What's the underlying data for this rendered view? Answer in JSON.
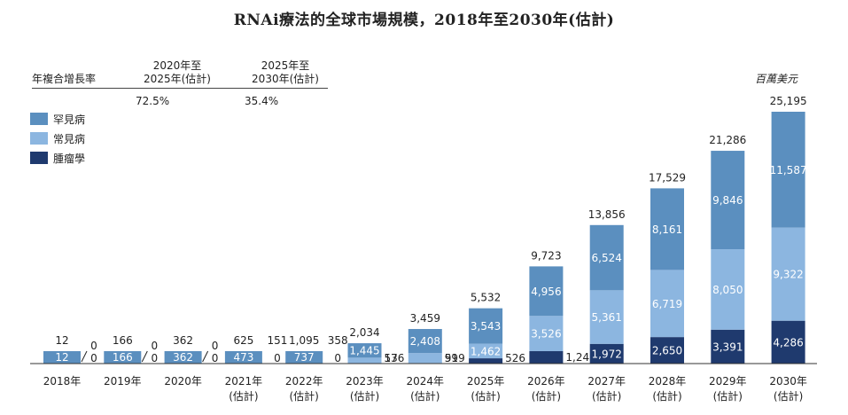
{
  "chart_data": {
    "type": "bar",
    "stacked": true,
    "title": "RNAi療法的全球市場規模，2018年至2030年(估計)",
    "unit": "百萬美元",
    "categories": [
      [
        "2018年"
      ],
      [
        "2019年"
      ],
      [
        "2020年"
      ],
      [
        "2021年",
        "(估計)"
      ],
      [
        "2022年",
        "(估計)"
      ],
      [
        "2023年",
        "(估計)"
      ],
      [
        "2024年",
        "(估計)"
      ],
      [
        "2025年",
        "(估計)"
      ],
      [
        "2026年",
        "(估計)"
      ],
      [
        "2027年",
        "(估計)"
      ],
      [
        "2028年",
        "(估計)"
      ],
      [
        "2029年",
        "(估計)"
      ],
      [
        "2030年",
        "(估計)"
      ]
    ],
    "totals": [
      "12",
      "166",
      "362",
      "625",
      "1,095",
      "2,034",
      "3,459",
      "5,532",
      "9,723",
      "13,856",
      "17,529",
      "21,286",
      "25,195"
    ],
    "series": [
      {
        "name": "腫瘤學",
        "color": "#1f3a6e",
        "values": [
          0,
          0,
          0,
          0,
          0,
          13,
          51,
          526,
          1241,
          1972,
          2650,
          3391,
          4286
        ],
        "labels": [
          "0",
          "0",
          "0",
          "0",
          "0",
          "13",
          "51",
          "526",
          "1,241",
          "1,972",
          "2,650",
          "3,391",
          "4,286"
        ]
      },
      {
        "name": "常見病",
        "color": "#8cb6e0",
        "values": [
          0,
          0,
          0,
          151,
          358,
          576,
          999,
          1462,
          3526,
          5361,
          6719,
          8050,
          9322
        ],
        "labels": [
          "0",
          "0",
          "0",
          "151",
          "358",
          "576",
          "999",
          "1,462",
          "3,526",
          "5,361",
          "6,719",
          "8,050",
          "9,322"
        ]
      },
      {
        "name": "罕見病",
        "color": "#5b8fbf",
        "values": [
          12,
          166,
          362,
          473,
          737,
          1445,
          2408,
          3543,
          4956,
          6524,
          8161,
          9846,
          11587
        ],
        "labels": [
          "12",
          "166",
          "362",
          "473",
          "737",
          "1,445",
          "2,408",
          "3,543",
          "4,956",
          "6,524",
          "8,161",
          "9,846",
          "11,587"
        ]
      }
    ],
    "legend": [
      "罕見病",
      "常見病",
      "腫瘤學"
    ],
    "ylim": [
      0,
      25195
    ]
  },
  "cagr": {
    "row_label": "年複合增長率",
    "periods": [
      {
        "header": [
          "2020年至",
          "2025年(估計)"
        ],
        "value": "72.5%"
      },
      {
        "header": [
          "2025年至",
          "2030年(估計)"
        ],
        "value": "35.4%"
      }
    ]
  }
}
